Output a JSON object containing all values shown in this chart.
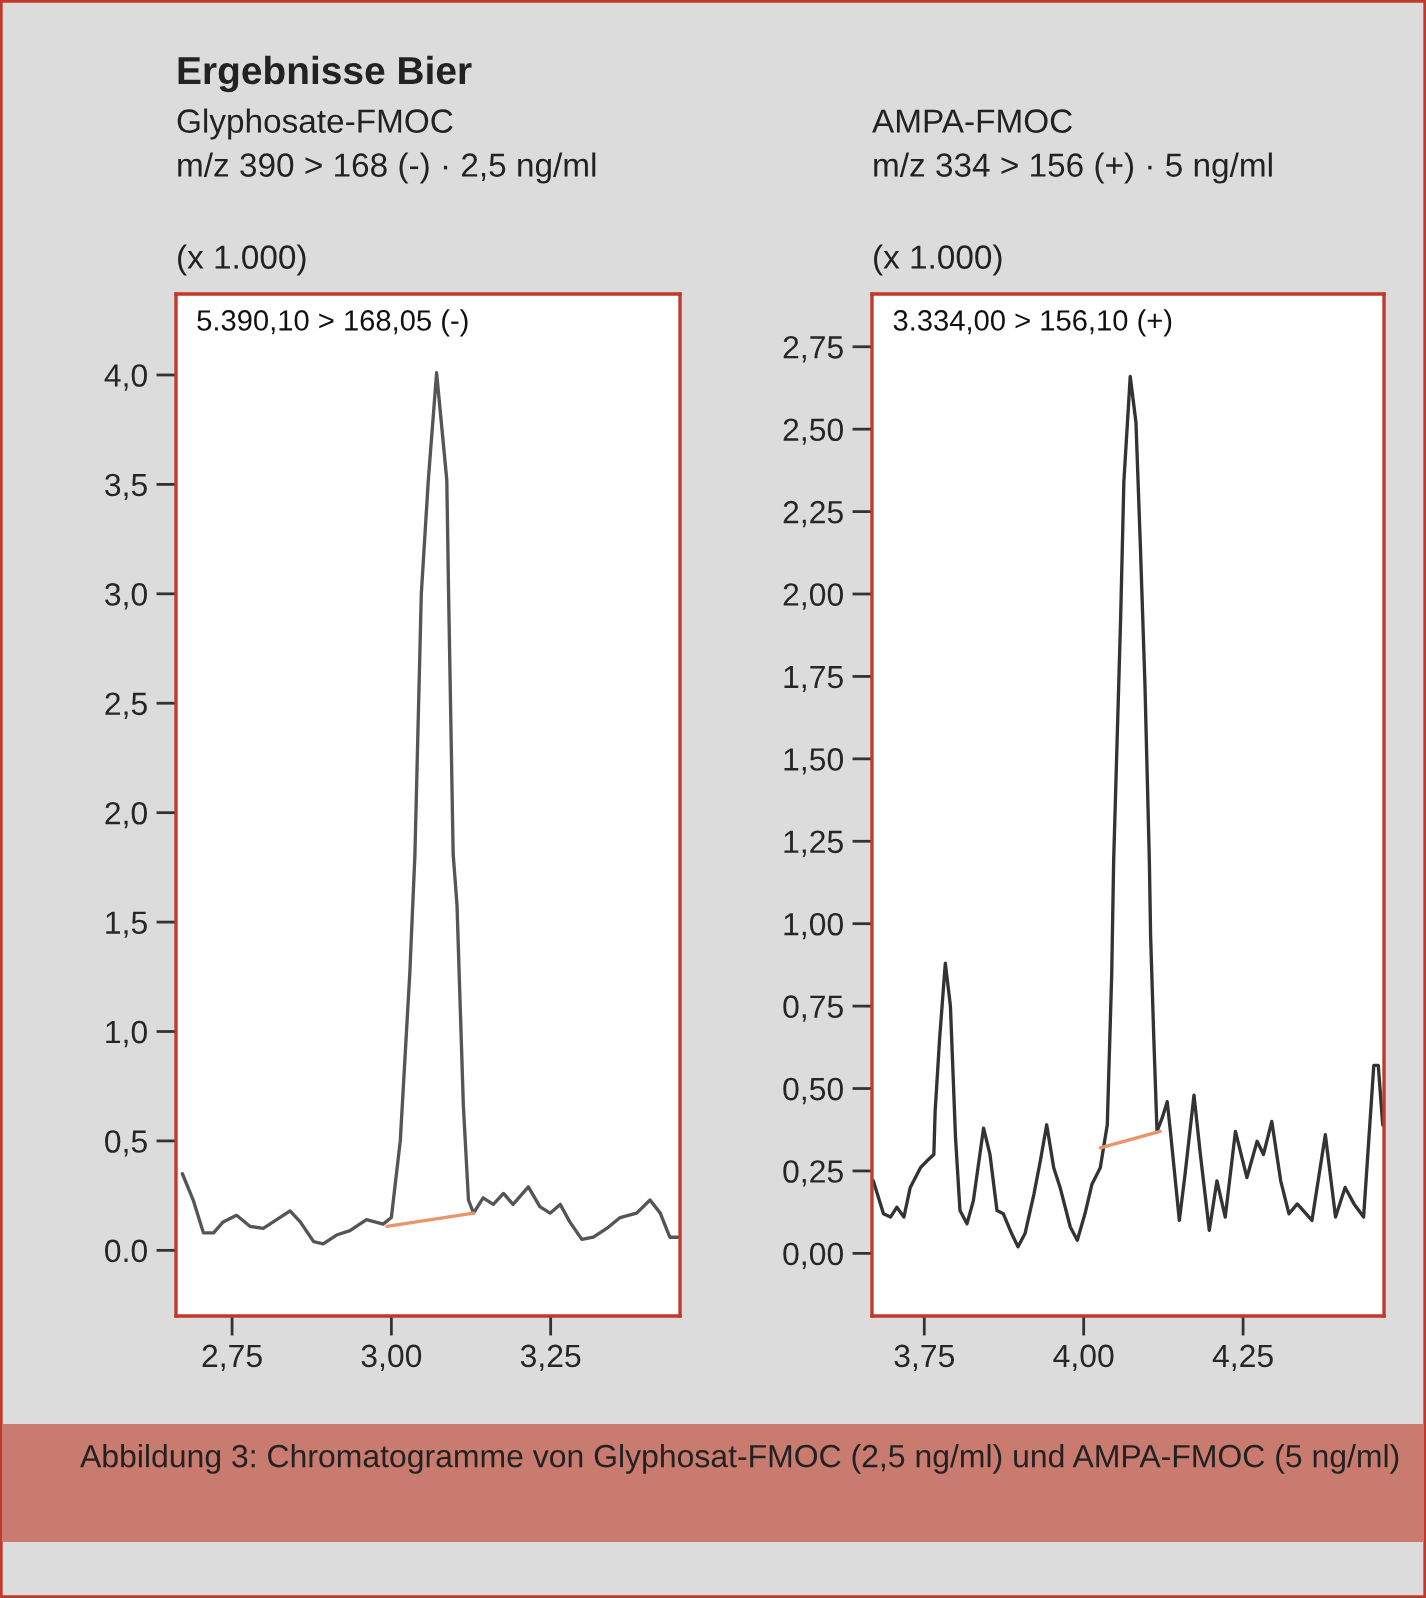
{
  "chart_data": [
    {
      "type": "line",
      "title": "Glyphosate-FMOC",
      "subtitle": "m/z 390 > 168 (-) · 2,5 ng/ml",
      "ylabel": "(x 1.000)",
      "annotations": [
        "5.390,10 > 168,05 (-)",
        "Ergebnisse Bier"
      ],
      "xlim": [
        2.662,
        3.453
      ],
      "ylim": [
        -0.3,
        4.37
      ],
      "xticks": [
        {
          "value": 2.75,
          "label": "2,75"
        },
        {
          "value": 3.0,
          "label": "3,00"
        },
        {
          "value": 3.25,
          "label": "3,25"
        }
      ],
      "yticks": [
        {
          "value": 0,
          "label": "0.0"
        },
        {
          "value": 0.5,
          "label": "0,5"
        },
        {
          "value": 1.0,
          "label": "1,0"
        },
        {
          "value": 1.5,
          "label": "1,5"
        },
        {
          "value": 2.0,
          "label": "2,0"
        },
        {
          "value": 2.5,
          "label": "2,5"
        },
        {
          "value": 3.0,
          "label": "3,0"
        },
        {
          "value": 3.5,
          "label": "3,5"
        },
        {
          "value": 4.0,
          "label": "4,0"
        }
      ],
      "series": [
        {
          "color": "#555555",
          "x": [
            2.672,
            2.689,
            2.705,
            2.721,
            2.736,
            2.757,
            2.778,
            2.799,
            2.82,
            2.841,
            2.857,
            2.878,
            2.893,
            2.914,
            2.935,
            2.961,
            2.987,
            3.0,
            3.014,
            3.029,
            3.037,
            3.047,
            3.058,
            3.071,
            3.087,
            3.09,
            3.097,
            3.103,
            3.113,
            3.121,
            3.129,
            3.144,
            3.16,
            3.176,
            3.191,
            3.215,
            3.233,
            3.249,
            3.265,
            3.28,
            3.299,
            3.317,
            3.338,
            3.359,
            3.385,
            3.406,
            3.422,
            3.437,
            3.45
          ],
          "values": [
            0.35,
            0.23,
            0.08,
            0.08,
            0.13,
            0.16,
            0.11,
            0.1,
            0.14,
            0.18,
            0.13,
            0.04,
            0.03,
            0.07,
            0.09,
            0.14,
            0.12,
            0.15,
            0.5,
            1.27,
            1.81,
            3.0,
            3.52,
            4.01,
            3.52,
            2.97,
            1.81,
            1.58,
            0.66,
            0.23,
            0.17,
            0.24,
            0.21,
            0.26,
            0.21,
            0.29,
            0.2,
            0.17,
            0.21,
            0.13,
            0.05,
            0.06,
            0.1,
            0.15,
            0.17,
            0.23,
            0.17,
            0.06,
            0.06
          ]
        },
        {
          "color": "#e8956b",
          "x": [
            2.993,
            3.129
          ],
          "values": [
            0.11,
            0.17
          ]
        }
      ]
    },
    {
      "type": "line",
      "title": "AMPA-FMOC",
      "subtitle": "m/z 334 > 156 (+) · 5 ng/ml",
      "ylabel": "(x 1.000)",
      "annotations": [
        "3.334,00 > 156,10 (+)",
        "Abbildung 3: Chromatogramme von Glyphosat-FMOC (2,5 ng/ml) und AMPA-FMOC (5 ng/ml)"
      ],
      "xlim": [
        3.668,
        4.471
      ],
      "ylim": [
        -0.19,
        2.91
      ],
      "xticks": [
        {
          "value": 3.75,
          "label": "3,75"
        },
        {
          "value": 4.0,
          "label": "4,00"
        },
        {
          "value": 4.25,
          "label": "4,25"
        }
      ],
      "yticks": [
        {
          "value": 0,
          "label": "0,00"
        },
        {
          "value": 0.25,
          "label": "0,25"
        },
        {
          "value": 0.5,
          "label": "0,50"
        },
        {
          "value": 0.75,
          "label": "0,75"
        },
        {
          "value": 1.0,
          "label": "1,00"
        },
        {
          "value": 1.25,
          "label": "1,25"
        },
        {
          "value": 1.5,
          "label": "1,50"
        },
        {
          "value": 1.75,
          "label": "1,75"
        },
        {
          "value": 2.0,
          "label": "2,00"
        },
        {
          "value": 2.25,
          "label": "2,25"
        },
        {
          "value": 2.5,
          "label": "2,50"
        },
        {
          "value": 2.75,
          "label": "2,75"
        }
      ],
      "series": [
        {
          "color": "#333333",
          "x": [
            3.67,
            3.686,
            3.697,
            3.707,
            3.718,
            3.728,
            3.744,
            3.754,
            3.765,
            3.767,
            3.774,
            3.783,
            3.791,
            3.799,
            3.806,
            3.817,
            3.827,
            3.843,
            3.853,
            3.864,
            3.874,
            3.887,
            3.897,
            3.908,
            3.922,
            3.932,
            3.942,
            3.953,
            3.963,
            3.979,
            3.99,
            4.002,
            4.013,
            4.026,
            4.037,
            4.044,
            4.047,
            4.058,
            4.063,
            4.073,
            4.082,
            4.089,
            4.096,
            4.103,
            4.105,
            4.11,
            4.115,
            4.123,
            4.131,
            4.136,
            4.15,
            4.159,
            4.173,
            4.183,
            4.197,
            4.209,
            4.222,
            4.238,
            4.256,
            4.272,
            4.282,
            4.295,
            4.309,
            4.322,
            4.335,
            4.358,
            4.379,
            4.395,
            4.41,
            4.424,
            4.439,
            4.455,
            4.462,
            4.469
          ],
          "values": [
            0.22,
            0.12,
            0.11,
            0.14,
            0.11,
            0.2,
            0.26,
            0.28,
            0.3,
            0.43,
            0.65,
            0.88,
            0.75,
            0.35,
            0.13,
            0.09,
            0.16,
            0.38,
            0.3,
            0.13,
            0.12,
            0.06,
            0.02,
            0.06,
            0.18,
            0.28,
            0.39,
            0.26,
            0.2,
            0.08,
            0.04,
            0.12,
            0.21,
            0.26,
            0.39,
            0.85,
            1.19,
            1.93,
            2.34,
            2.66,
            2.52,
            2.14,
            1.73,
            1.19,
            0.96,
            0.65,
            0.37,
            0.41,
            0.46,
            0.37,
            0.1,
            0.24,
            0.48,
            0.3,
            0.07,
            0.22,
            0.11,
            0.37,
            0.23,
            0.34,
            0.3,
            0.4,
            0.22,
            0.12,
            0.15,
            0.1,
            0.36,
            0.11,
            0.2,
            0.15,
            0.11,
            0.57,
            0.57,
            0.39
          ]
        },
        {
          "color": "#e8956b",
          "x": [
            4.026,
            4.12
          ],
          "values": [
            0.32,
            0.37
          ]
        }
      ]
    }
  ]
}
